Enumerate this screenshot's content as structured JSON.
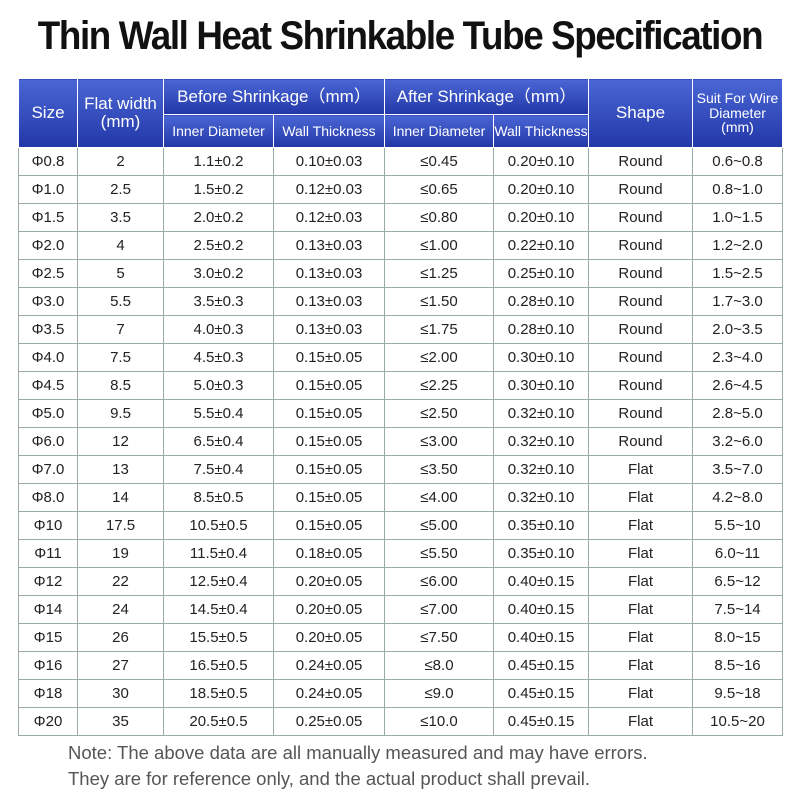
{
  "title": "Thin Wall Heat Shrinkable Tube Specification",
  "table": {
    "header": {
      "size": "Size",
      "flat_width": [
        "Flat width",
        "(mm)"
      ],
      "before": "Before Shrinkage（mm）",
      "after": "After Shrinkage（mm）",
      "shape": "Shape",
      "suit": [
        "Suit For Wire",
        "Diameter",
        "(mm)"
      ],
      "sub": [
        "Inner Diameter",
        "Wall Thickness",
        "Inner Diameter",
        "Wall Thickness"
      ]
    },
    "rows": [
      [
        "Φ0.8",
        "2",
        "1.1±0.2",
        "0.10±0.03",
        "≤0.45",
        "0.20±0.10",
        "Round",
        "0.6~0.8"
      ],
      [
        "Φ1.0",
        "2.5",
        "1.5±0.2",
        "0.12±0.03",
        "≤0.65",
        "0.20±0.10",
        "Round",
        "0.8~1.0"
      ],
      [
        "Φ1.5",
        "3.5",
        "2.0±0.2",
        "0.12±0.03",
        "≤0.80",
        "0.20±0.10",
        "Round",
        "1.0~1.5"
      ],
      [
        "Φ2.0",
        "4",
        "2.5±0.2",
        "0.13±0.03",
        "≤1.00",
        "0.22±0.10",
        "Round",
        "1.2~2.0"
      ],
      [
        "Φ2.5",
        "5",
        "3.0±0.2",
        "0.13±0.03",
        "≤1.25",
        "0.25±0.10",
        "Round",
        "1.5~2.5"
      ],
      [
        "Φ3.0",
        "5.5",
        "3.5±0.3",
        "0.13±0.03",
        "≤1.50",
        "0.28±0.10",
        "Round",
        "1.7~3.0"
      ],
      [
        "Φ3.5",
        "7",
        "4.0±0.3",
        "0.13±0.03",
        "≤1.75",
        "0.28±0.10",
        "Round",
        "2.0~3.5"
      ],
      [
        "Φ4.0",
        "7.5",
        "4.5±0.3",
        "0.15±0.05",
        "≤2.00",
        "0.30±0.10",
        "Round",
        "2.3~4.0"
      ],
      [
        "Φ4.5",
        "8.5",
        "5.0±0.3",
        "0.15±0.05",
        "≤2.25",
        "0.30±0.10",
        "Round",
        "2.6~4.5"
      ],
      [
        "Φ5.0",
        "9.5",
        "5.5±0.4",
        "0.15±0.05",
        "≤2.50",
        "0.32±0.10",
        "Round",
        "2.8~5.0"
      ],
      [
        "Φ6.0",
        "12",
        "6.5±0.4",
        "0.15±0.05",
        "≤3.00",
        "0.32±0.10",
        "Round",
        "3.2~6.0"
      ],
      [
        "Φ7.0",
        "13",
        "7.5±0.4",
        "0.15±0.05",
        "≤3.50",
        "0.32±0.10",
        "Flat",
        "3.5~7.0"
      ],
      [
        "Φ8.0",
        "14",
        "8.5±0.5",
        "0.15±0.05",
        "≤4.00",
        "0.32±0.10",
        "Flat",
        "4.2~8.0"
      ],
      [
        "Φ10",
        "17.5",
        "10.5±0.5",
        "0.15±0.05",
        "≤5.00",
        "0.35±0.10",
        "Flat",
        "5.5~10"
      ],
      [
        "Φ11",
        "19",
        "11.5±0.4",
        "0.18±0.05",
        "≤5.50",
        "0.35±0.10",
        "Flat",
        "6.0~11"
      ],
      [
        "Φ12",
        "22",
        "12.5±0.4",
        "0.20±0.05",
        "≤6.00",
        "0.40±0.15",
        "Flat",
        "6.5~12"
      ],
      [
        "Φ14",
        "24",
        "14.5±0.4",
        "0.20±0.05",
        "≤7.00",
        "0.40±0.15",
        "Flat",
        "7.5~14"
      ],
      [
        "Φ15",
        "26",
        "15.5±0.5",
        "0.20±0.05",
        "≤7.50",
        "0.40±0.15",
        "Flat",
        "8.0~15"
      ],
      [
        "Φ16",
        "27",
        "16.5±0.5",
        "0.24±0.05",
        "≤8.0",
        "0.45±0.15",
        "Flat",
        "8.5~16"
      ],
      [
        "Φ18",
        "30",
        "18.5±0.5",
        "0.24±0.05",
        "≤9.0",
        "0.45±0.15",
        "Flat",
        "9.5~18"
      ],
      [
        "Φ20",
        "35",
        "20.5±0.5",
        "0.25±0.05",
        "≤10.0",
        "0.45±0.15",
        "Flat",
        "10.5~20"
      ]
    ]
  },
  "notes": [
    "Note: The above data are all manually measured and may have errors.",
    "They are for reference only, and the actual product shall prevail."
  ]
}
